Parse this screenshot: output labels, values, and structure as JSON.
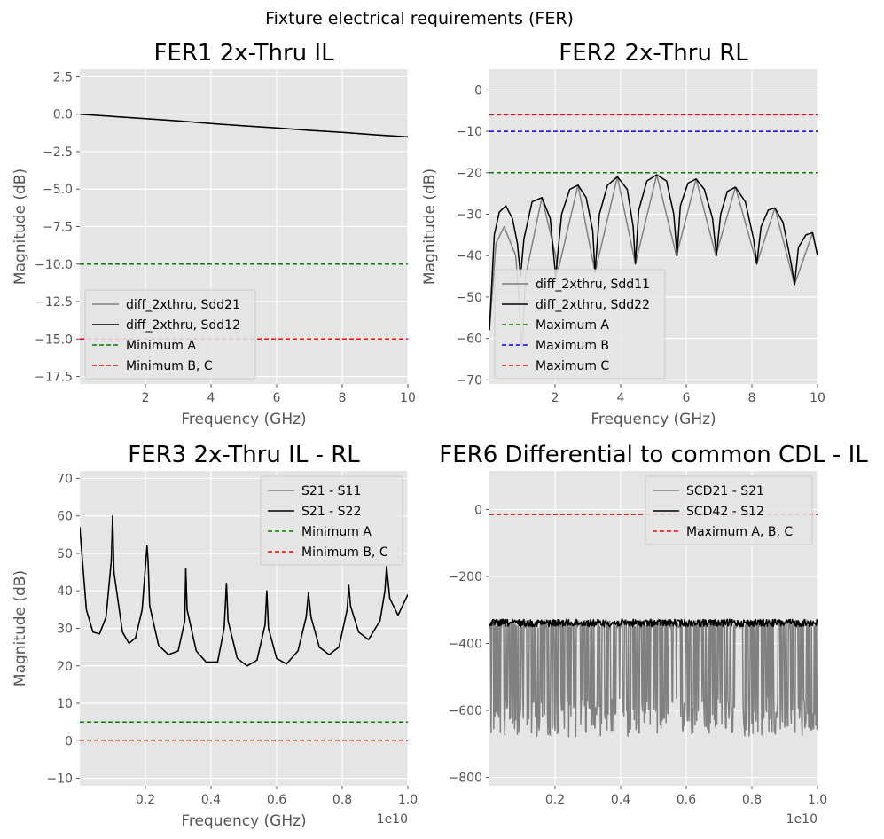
{
  "figure": {
    "suptitle": "Fixture electrical requirements (FER)"
  },
  "chart_data": [
    {
      "type": "line",
      "title": "FER1 2x-Thru IL",
      "xlabel": "Frequency (GHz)",
      "ylabel": "Magnitude (dB)",
      "xlim": [
        0.0,
        10
      ],
      "ylim": [
        -18,
        3
      ],
      "xticks": [
        2,
        4,
        6,
        8,
        10
      ],
      "xtick_labels": [
        "2",
        "4",
        "6",
        "8",
        "10"
      ],
      "yticks": [
        2.5,
        0,
        -2.5,
        -5,
        -7.5,
        -10,
        -12.5,
        -15,
        -17.5
      ],
      "ytick_labels": [
        "2.5",
        "0.0",
        "−2.5",
        "−5.0",
        "−7.5",
        "−10.0",
        "−12.5",
        "−15.0",
        "−17.5"
      ],
      "grid": true,
      "legend_position": "lower-left",
      "legend": [
        "diff_2xthru, Sdd21",
        "diff_2xthru, Sdd12",
        "Minimum A",
        "Minimum B, C"
      ],
      "series": [
        {
          "name": "diff_2xthru, Sdd21",
          "color": "#808080",
          "style": "solid",
          "x": [
            0.01,
            2,
            3,
            4,
            5,
            6,
            7,
            8,
            9,
            10
          ],
          "y": [
            0.0,
            -0.3,
            -0.45,
            -0.62,
            -0.78,
            -0.92,
            -1.08,
            -1.22,
            -1.38,
            -1.52
          ]
        },
        {
          "name": "diff_2xthru, Sdd12",
          "color": "#000000",
          "style": "solid",
          "x": [
            0.01,
            2,
            3,
            4,
            5,
            6,
            7,
            8,
            9,
            10
          ],
          "y": [
            0.0,
            -0.3,
            -0.45,
            -0.62,
            -0.78,
            -0.92,
            -1.08,
            -1.22,
            -1.38,
            -1.52
          ]
        },
        {
          "name": "Minimum A",
          "color": "#008000",
          "style": "dashed",
          "x": [
            0.0,
            10
          ],
          "y": [
            -10,
            -10
          ]
        },
        {
          "name": "Minimum B, C",
          "color": "#ff0000",
          "style": "dashed",
          "x": [
            0.0,
            10
          ],
          "y": [
            -15,
            -15
          ]
        }
      ]
    },
    {
      "type": "line",
      "title": "FER2 2x-Thru RL",
      "xlabel": "Frequency (GHz)",
      "ylabel": "Magnitude (dB)",
      "xlim": [
        0.0,
        10
      ],
      "ylim": [
        -71,
        5
      ],
      "xticks": [
        2,
        4,
        6,
        8,
        10
      ],
      "xtick_labels": [
        "2",
        "4",
        "6",
        "8",
        "10"
      ],
      "yticks": [
        0,
        -10,
        -20,
        -30,
        -40,
        -50,
        -60,
        -70
      ],
      "ytick_labels": [
        "0",
        "−10",
        "−20",
        "−30",
        "−40",
        "−50",
        "−60",
        "−70"
      ],
      "grid": true,
      "legend_position": "lower-left",
      "legend": [
        "diff_2xthru, Sdd11",
        "diff_2xthru, Sdd22",
        "Maximum A",
        "Maximum B",
        "Maximum C"
      ],
      "series": [
        {
          "name": "diff_2xthru, Sdd11",
          "color": "#808080",
          "style": "solid",
          "x": [
            0.0,
            0.2,
            0.45,
            0.8,
            0.9,
            0.96,
            1.0,
            1.04,
            1.1,
            1.6,
            2.02,
            2.08,
            2.7,
            3.22,
            3.28,
            3.9,
            4.45,
            5.1,
            5.7,
            6.3,
            6.9,
            7.5,
            8.15,
            8.7,
            9.3,
            9.85,
            10
          ],
          "y": [
            -58,
            -37,
            -33,
            -40,
            -50,
            -61,
            -62,
            -55,
            -45,
            -26,
            -40,
            -44,
            -23,
            -44,
            -42,
            -21,
            -42,
            -20.5,
            -40,
            -21.5,
            -40,
            -23.5,
            -42,
            -28.5,
            -47,
            -34.5,
            -40
          ]
        },
        {
          "name": "diff_2xthru, Sdd22",
          "color": "#000000",
          "style": "solid",
          "x": [
            0.0,
            0.15,
            0.3,
            0.5,
            0.7,
            0.85,
            0.95,
            1.05,
            1.3,
            1.6,
            1.85,
            2.02,
            2.2,
            2.45,
            2.7,
            2.95,
            3.15,
            3.22,
            3.35,
            3.6,
            3.9,
            4.2,
            4.38,
            4.45,
            4.55,
            4.8,
            5.1,
            5.4,
            5.62,
            5.72,
            5.82,
            6.05,
            6.3,
            6.55,
            6.8,
            6.92,
            7.05,
            7.25,
            7.5,
            7.8,
            8.05,
            8.15,
            8.28,
            8.5,
            8.7,
            8.95,
            9.2,
            9.3,
            9.42,
            9.65,
            9.85,
            10
          ],
          "y": [
            -58,
            -35,
            -29.5,
            -28,
            -31,
            -37,
            -45,
            -36,
            -27,
            -26,
            -31,
            -45,
            -30,
            -24,
            -23,
            -26,
            -34,
            -44,
            -30,
            -23,
            -21,
            -24,
            -33,
            -42,
            -29,
            -22,
            -20.5,
            -22,
            -30,
            -40,
            -28,
            -22.5,
            -21.5,
            -24,
            -31,
            -40,
            -30,
            -24.5,
            -23.5,
            -27,
            -36,
            -42,
            -33,
            -29,
            -28.5,
            -32,
            -42,
            -47,
            -38,
            -35,
            -34.5,
            -40
          ]
        },
        {
          "name": "Maximum A",
          "color": "#008000",
          "style": "dashed",
          "x": [
            0.0,
            10
          ],
          "y": [
            -20,
            -20
          ]
        },
        {
          "name": "Maximum B",
          "color": "#0000ff",
          "style": "dashed",
          "x": [
            0.0,
            10
          ],
          "y": [
            -10,
            -10
          ]
        },
        {
          "name": "Maximum C",
          "color": "#ff0000",
          "style": "dashed",
          "x": [
            0.0,
            10
          ],
          "y": [
            -6,
            -6
          ]
        }
      ]
    },
    {
      "type": "line",
      "title": "FER3 2x-Thru IL - RL",
      "xlabel": "Frequency (GHz)",
      "ylabel": "Magnitude (dB)",
      "x_offset_label": "1e10",
      "xlim": [
        0.0,
        1.0
      ],
      "ylim": [
        -12,
        72
      ],
      "xticks": [
        0.2,
        0.4,
        0.6,
        0.8,
        1.0
      ],
      "xtick_labels": [
        "0.2",
        "0.4",
        "0.6",
        "0.8",
        "1.0"
      ],
      "yticks": [
        70,
        60,
        50,
        40,
        30,
        20,
        10,
        0,
        -10
      ],
      "ytick_labels": [
        "70",
        "60",
        "50",
        "40",
        "30",
        "20",
        "10",
        "0",
        "−10"
      ],
      "grid": true,
      "legend_position": "top-right",
      "legend": [
        "S21 - S11",
        "S21 - S22",
        "Minimum A",
        "Minimum B, C"
      ],
      "series": [
        {
          "name": "S21 - S11",
          "color": "#808080",
          "style": "solid",
          "x": [
            0.0,
            0.02,
            0.04,
            0.06,
            0.08,
            0.096,
            0.1,
            0.104,
            0.13,
            0.15,
            0.17,
            0.19,
            0.205,
            0.208,
            0.213,
            0.24,
            0.27,
            0.3,
            0.32,
            0.323,
            0.327,
            0.355,
            0.385,
            0.42,
            0.44,
            0.447,
            0.452,
            0.48,
            0.51,
            0.54,
            0.565,
            0.57,
            0.575,
            0.6,
            0.63,
            0.665,
            0.69,
            0.697,
            0.705,
            0.73,
            0.76,
            0.79,
            0.815,
            0.82,
            0.825,
            0.85,
            0.88,
            0.915,
            0.93,
            0.935,
            0.945,
            0.97,
            1.0
          ],
          "y": [
            57,
            35,
            29,
            28.5,
            33,
            48,
            60,
            45,
            29,
            26,
            27.5,
            35,
            52,
            48,
            36,
            25.5,
            23,
            24,
            32,
            46,
            35,
            24,
            21,
            21,
            30,
            42,
            32,
            22,
            20,
            21.5,
            31,
            40,
            30,
            22,
            20.5,
            24,
            33,
            39.5,
            33,
            25,
            23,
            25,
            35,
            41.5,
            36,
            29,
            27,
            32,
            40,
            46.5,
            38,
            33.5,
            39
          ]
        },
        {
          "name": "S21 - S22",
          "color": "#000000",
          "style": "solid",
          "x": [
            0.0,
            0.02,
            0.04,
            0.06,
            0.08,
            0.096,
            0.1,
            0.104,
            0.13,
            0.15,
            0.17,
            0.19,
            0.205,
            0.208,
            0.213,
            0.24,
            0.27,
            0.3,
            0.32,
            0.323,
            0.327,
            0.355,
            0.385,
            0.42,
            0.44,
            0.447,
            0.452,
            0.48,
            0.51,
            0.54,
            0.565,
            0.57,
            0.575,
            0.6,
            0.63,
            0.665,
            0.69,
            0.697,
            0.705,
            0.73,
            0.76,
            0.79,
            0.815,
            0.82,
            0.825,
            0.85,
            0.88,
            0.915,
            0.93,
            0.935,
            0.945,
            0.97,
            1.0
          ],
          "y": [
            57,
            35,
            29,
            28.5,
            33,
            48,
            60,
            45,
            29,
            26,
            27.5,
            35,
            52,
            48,
            36,
            25.5,
            23,
            24,
            32,
            46,
            35,
            24,
            21,
            21,
            30,
            42,
            32,
            22,
            20,
            21.5,
            31,
            40,
            30,
            22,
            20.5,
            24,
            33,
            39.5,
            33,
            25,
            23,
            25,
            35,
            41.5,
            36,
            29,
            27,
            32,
            40,
            46.5,
            38,
            33.5,
            39
          ]
        },
        {
          "name": "Minimum A",
          "color": "#008000",
          "style": "dashed",
          "x": [
            0.0,
            1.0
          ],
          "y": [
            5,
            5
          ]
        },
        {
          "name": "Minimum B, C",
          "color": "#ff0000",
          "style": "dashed",
          "x": [
            0.0,
            1.0
          ],
          "y": [
            0,
            0
          ]
        }
      ]
    },
    {
      "type": "line",
      "title": "FER6 Differential to common CDL - IL",
      "xlabel": "",
      "ylabel": "",
      "x_offset_label": "1e10",
      "xlim": [
        0.0,
        1.0
      ],
      "ylim": [
        -825,
        115
      ],
      "xticks": [
        0.2,
        0.4,
        0.6,
        0.8,
        1.0
      ],
      "xtick_labels": [
        "0.2",
        "0.4",
        "0.6",
        "0.8",
        "1.0"
      ],
      "yticks": [
        0,
        -200,
        -400,
        -600,
        -800
      ],
      "ytick_labels": [
        "0",
        "−200",
        "−400",
        "−600",
        "−800"
      ],
      "grid": true,
      "legend_position": "top-right",
      "legend": [
        "SCD21 - S21",
        "SCD42 - S12",
        "Maximum A, B, C"
      ],
      "series": [
        {
          "name": "SCD21 - S21",
          "color": "#808080",
          "style": "solid",
          "note_envelope": "dense noise between about -340 and -690 dB",
          "x": [
            0.0,
            1.0
          ],
          "y": [
            -340,
            -340
          ]
        },
        {
          "name": "SCD42 - S12",
          "color": "#000000",
          "style": "solid",
          "note_envelope": "noisy trace around -330 to -350 dB",
          "x": [
            0.0,
            1.0
          ],
          "y": [
            -335,
            -335
          ]
        },
        {
          "name": "Maximum A, B, C",
          "color": "#ff0000",
          "style": "dashed",
          "x": [
            0.0,
            1.0
          ],
          "y": [
            -15,
            -15
          ]
        }
      ]
    }
  ]
}
